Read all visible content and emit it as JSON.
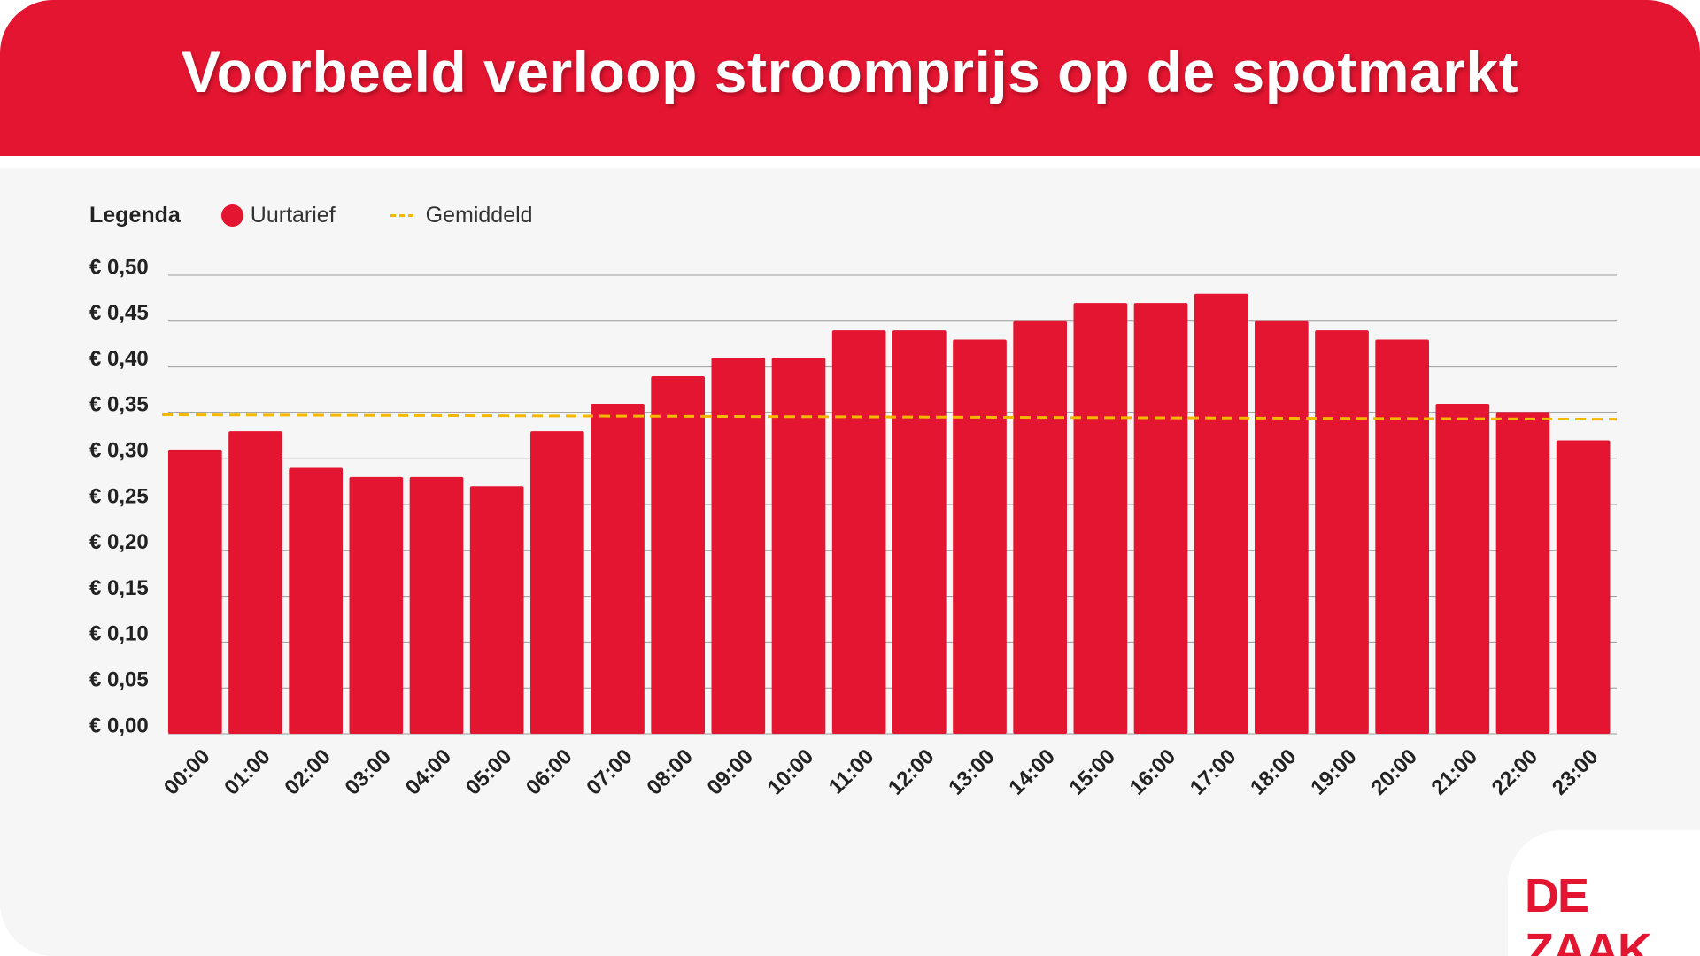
{
  "header": {
    "title": "Voorbeeld verloop stroomprijs op de spotmarkt"
  },
  "legend": {
    "title": "Legenda",
    "items": [
      {
        "label": "Uurtarief",
        "color": "#e31530",
        "marker": "dot"
      },
      {
        "label": "Gemiddeld",
        "color": "#f5b800",
        "marker": "dashed-line"
      }
    ]
  },
  "logo": {
    "text": "DE ZAAK"
  },
  "colors": {
    "accent": "#e31530",
    "average": "#f5b800",
    "background": "#f6f6f6"
  },
  "chart_data": {
    "type": "bar",
    "categories": [
      "00:00",
      "01:00",
      "02:00",
      "03:00",
      "04:00",
      "05:00",
      "06:00",
      "07:00",
      "08:00",
      "09:00",
      "10:00",
      "11:00",
      "12:00",
      "13:00",
      "14:00",
      "15:00",
      "16:00",
      "17:00",
      "18:00",
      "19:00",
      "20:00",
      "21:00",
      "22:00",
      "23:00"
    ],
    "series": [
      {
        "name": "Uurtarief",
        "values": [
          0.31,
          0.33,
          0.29,
          0.28,
          0.28,
          0.27,
          0.33,
          0.36,
          0.39,
          0.41,
          0.41,
          0.44,
          0.44,
          0.43,
          0.45,
          0.47,
          0.47,
          0.48,
          0.45,
          0.44,
          0.43,
          0.36,
          0.35,
          0.32
        ],
        "color": "#e31530"
      }
    ],
    "average_line": {
      "name": "Gemiddeld",
      "start": 0.348,
      "end": 0.343,
      "style": "dashed",
      "color": "#f5b800"
    },
    "yticks": [
      "€ 0,00",
      "€ 0,05",
      "€ 0,10",
      "€ 0,15",
      "€ 0,20",
      "€ 0,25",
      "€ 0,30",
      "€ 0,35",
      "€ 0,40",
      "€ 0,45",
      "€ 0,50"
    ],
    "ylim": [
      0,
      0.5
    ],
    "grid": true,
    "legend_position": "top-left",
    "title": "Voorbeeld verloop stroomprijs op de spotmarkt",
    "xlabel": "",
    "ylabel": ""
  }
}
